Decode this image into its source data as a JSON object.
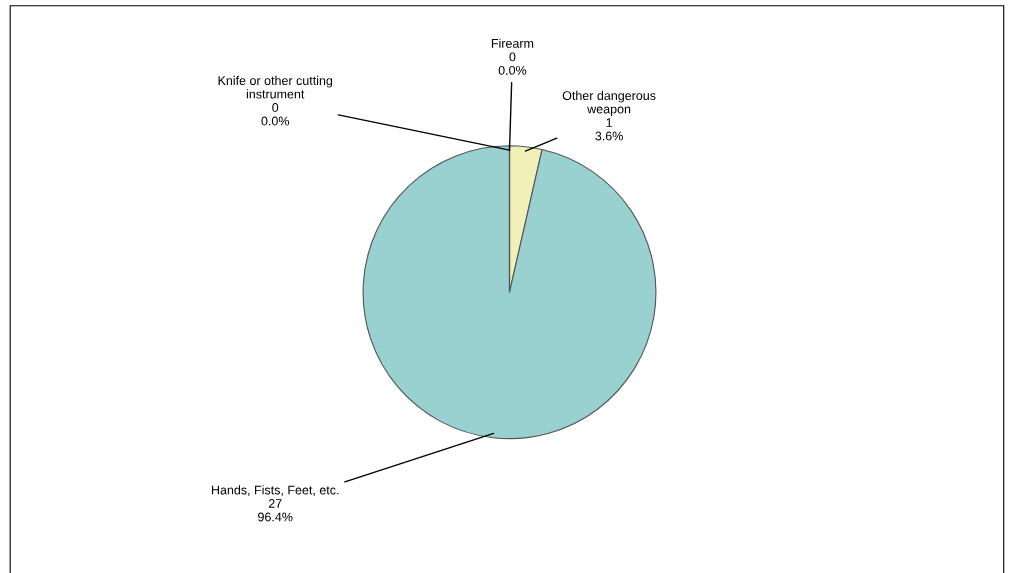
{
  "chart_data": {
    "type": "pie",
    "categories": [
      "Other dangerous\nweapon",
      "Hands, Fists, Feet, etc.",
      "Knife or other cutting\ninstrument",
      "Firearm"
    ],
    "values": [
      1,
      27,
      0,
      0
    ],
    "colors": [
      "#f0f0b8",
      "#99d0d0",
      "#ffffff",
      "#c8c8c8"
    ],
    "value_labels": [
      "1\n3.6%",
      "27\n96.4%",
      "0\n0.0%",
      "0\n0.0%"
    ],
    "legend": false
  }
}
